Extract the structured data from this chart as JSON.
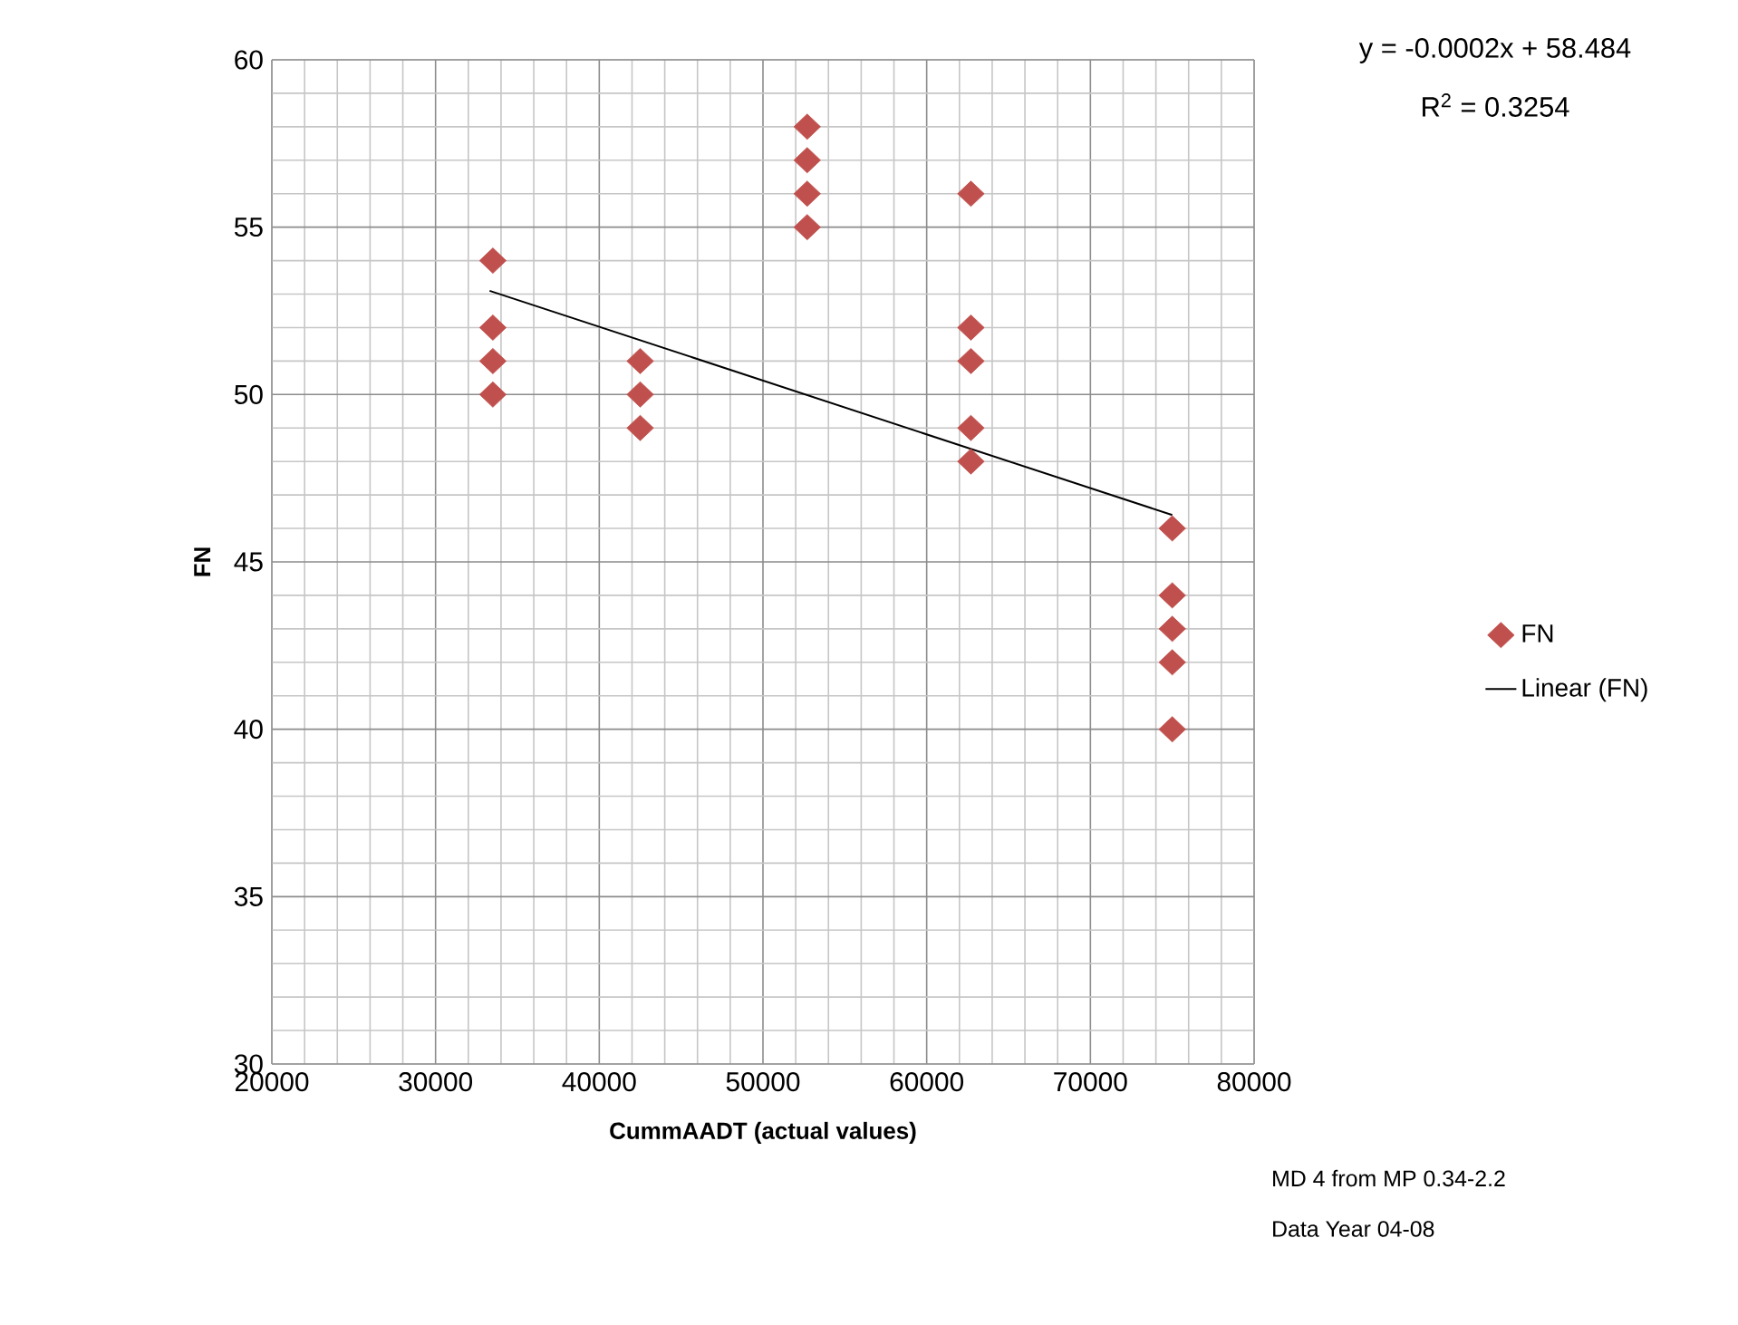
{
  "chart_data": {
    "type": "scatter",
    "xlabel": "CummAADT (actual values)",
    "ylabel": "FN",
    "xlim": [
      20000,
      80000
    ],
    "ylim": [
      30,
      60
    ],
    "xticks": [
      20000,
      30000,
      40000,
      50000,
      60000,
      70000,
      80000
    ],
    "yticks": [
      30,
      35,
      40,
      45,
      50,
      55,
      60
    ],
    "grid": true,
    "legend": "right",
    "series": [
      {
        "name": "FN",
        "marker": "diamond",
        "color": "#c0504d",
        "x": [
          33500,
          33500,
          33500,
          33500,
          42500,
          42500,
          42500,
          52700,
          52700,
          52700,
          52700,
          62700,
          62700,
          62700,
          62700,
          62700,
          75000,
          75000,
          75000,
          75000,
          75000
        ],
        "values": [
          54,
          52,
          51,
          50,
          51,
          50,
          49,
          58,
          57,
          56,
          55,
          56,
          52,
          51,
          49,
          48,
          46,
          44,
          43,
          42,
          40
        ]
      },
      {
        "name": "Linear (FN)",
        "type": "line",
        "color": "#000000",
        "marker": "none",
        "x": [
          33300,
          75000
        ],
        "values": [
          53.1,
          46.4
        ]
      }
    ],
    "annotations": [
      "y = -0.0002x + 58.484",
      "R$^{2}$ = 0.3254",
      "MD 4 from MP 0.34-2.2",
      "Data Year 04-08"
    ]
  }
}
